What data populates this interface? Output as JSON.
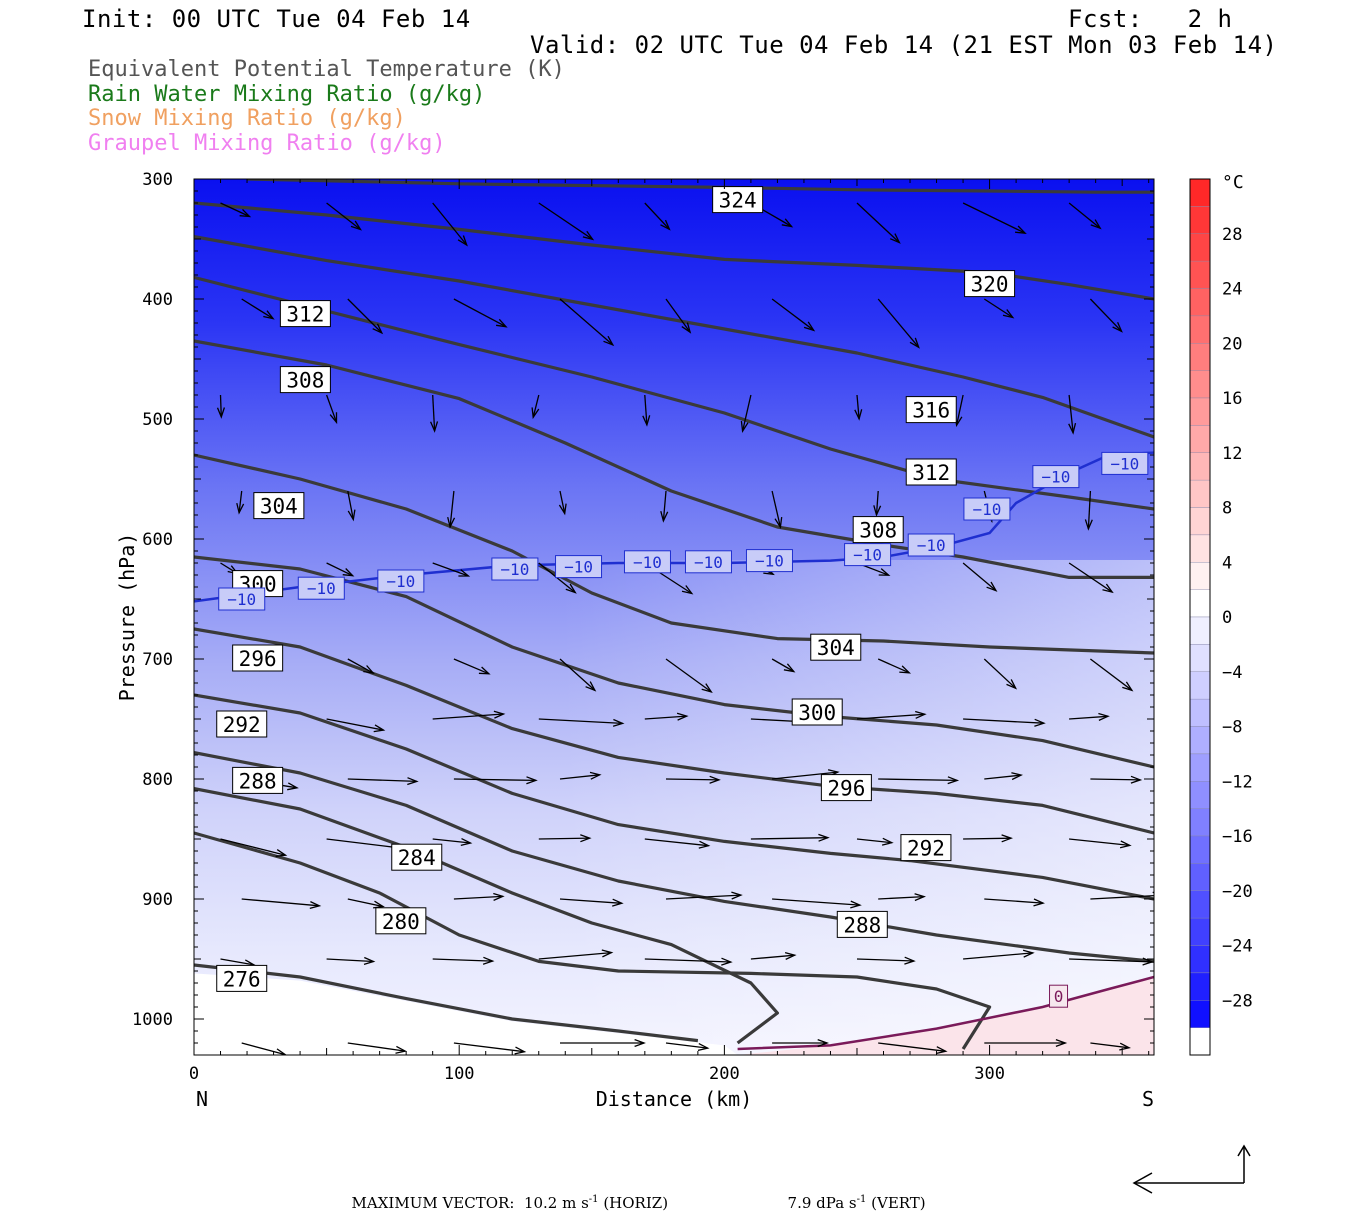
{
  "header": {
    "init": "Init: 00 UTC Tue 04 Feb 14",
    "fcst": "Fcst:   2 h",
    "valid": "Valid: 02 UTC Tue 04 Feb 14 (21 EST Mon 03 Feb 14)"
  },
  "fields": [
    {
      "label": "Equivalent Potential Temperature (K)",
      "color": "#555555"
    },
    {
      "label": "Rain Water Mixing Ratio (g/kg)",
      "color": "#1a7a1a"
    },
    {
      "label": "Snow Mixing Ratio (g/kg)",
      "color": "#f0a060"
    },
    {
      "label": "Graupel Mixing Ratio (g/kg)",
      "color": "#f080f0"
    }
  ],
  "footer": {
    "max_vector_label": "MAXIMUM VECTOR:",
    "horiz": "10.2 m s",
    "horiz_unit": "(HORIZ)",
    "vert": "7.9 dPa s",
    "vert_unit": "(VERT)",
    "exp": "-1"
  },
  "chart_data": {
    "type": "cross-section",
    "xlabel": "Distance (km)",
    "ylabel": "Pressure (hPa)",
    "xlim": [
      0,
      362
    ],
    "ylim": [
      1030,
      300
    ],
    "x_ticks": [
      0,
      100,
      200,
      300
    ],
    "y_ticks": [
      300,
      400,
      500,
      600,
      700,
      800,
      900,
      1000
    ],
    "x_end_labels": {
      "left": "N",
      "right": "S"
    },
    "colorbar": {
      "unit": "°C",
      "tick_labels": [
        "28",
        "24",
        "20",
        "16",
        "12",
        "8",
        "4",
        "0",
        "−4",
        "−8",
        "−12",
        "−16",
        "−20",
        "−24",
        "−28"
      ],
      "tick_values": [
        28,
        24,
        20,
        16,
        12,
        8,
        4,
        0,
        -4,
        -8,
        -12,
        -16,
        -20,
        -24,
        -28
      ],
      "range": [
        -32,
        32
      ],
      "warm_top": "#ff1a1a",
      "cold_bottom": "#0000ff",
      "zero": "#ffffff"
    },
    "theta_e_contours": [
      {
        "label": "324",
        "points": [
          [
            20,
            300
          ],
          [
            100,
            304
          ],
          [
            200,
            307
          ],
          [
            250,
            309
          ],
          [
            300,
            310
          ],
          [
            340,
            311
          ],
          [
            362,
            311
          ]
        ],
        "label_at": [
          205,
          318
        ]
      },
      {
        "label": "320",
        "points": [
          [
            0,
            320
          ],
          [
            50,
            330
          ],
          [
            100,
            342
          ],
          [
            150,
            355
          ],
          [
            200,
            367
          ],
          [
            250,
            372
          ],
          [
            300,
            378
          ],
          [
            330,
            388
          ],
          [
            362,
            400
          ]
        ],
        "label_at": [
          300,
          388
        ]
      },
      {
        "label": "316",
        "points": [
          [
            0,
            348
          ],
          [
            50,
            368
          ],
          [
            100,
            385
          ],
          [
            150,
            405
          ],
          [
            200,
            425
          ],
          [
            250,
            445
          ],
          [
            290,
            465
          ],
          [
            320,
            482
          ],
          [
            362,
            515
          ]
        ],
        "label_at": [
          278,
          493
        ]
      },
      {
        "label": "312",
        "points": [
          [
            0,
            382
          ],
          [
            50,
            410
          ],
          [
            100,
            438
          ],
          [
            150,
            465
          ],
          [
            200,
            495
          ],
          [
            240,
            525
          ],
          [
            280,
            550
          ],
          [
            330,
            565
          ],
          [
            362,
            575
          ]
        ],
        "label_at": [
          42,
          413
        ],
        "label2": "312",
        "label2_at": [
          278,
          545
        ]
      },
      {
        "label": "308",
        "points": [
          [
            0,
            435
          ],
          [
            50,
            455
          ],
          [
            100,
            483
          ],
          [
            140,
            520
          ],
          [
            180,
            560
          ],
          [
            220,
            590
          ],
          [
            260,
            605
          ],
          [
            290,
            615
          ],
          [
            330,
            632
          ],
          [
            362,
            632
          ]
        ],
        "label_at": [
          42,
          468
        ],
        "label2": "308",
        "label2_at": [
          258,
          593
        ]
      },
      {
        "label": "304",
        "points": [
          [
            0,
            530
          ],
          [
            40,
            550
          ],
          [
            80,
            575
          ],
          [
            120,
            610
          ],
          [
            150,
            645
          ],
          [
            180,
            670
          ],
          [
            220,
            683
          ],
          [
            260,
            685
          ],
          [
            300,
            690
          ],
          [
            362,
            695
          ]
        ],
        "label_at": [
          32,
          573
        ],
        "label2": "304",
        "label2_at": [
          242,
          691
        ]
      },
      {
        "label": "300",
        "points": [
          [
            0,
            615
          ],
          [
            40,
            625
          ],
          [
            80,
            648
          ],
          [
            120,
            690
          ],
          [
            160,
            720
          ],
          [
            200,
            738
          ],
          [
            240,
            748
          ],
          [
            280,
            755
          ],
          [
            320,
            768
          ],
          [
            362,
            790
          ]
        ],
        "label_at": [
          24,
          638
        ],
        "label2": "300",
        "label2_at": [
          235,
          745
        ]
      },
      {
        "label": "296",
        "points": [
          [
            0,
            675
          ],
          [
            40,
            690
          ],
          [
            80,
            722
          ],
          [
            120,
            758
          ],
          [
            160,
            782
          ],
          [
            200,
            795
          ],
          [
            240,
            806
          ],
          [
            280,
            812
          ],
          [
            320,
            822
          ],
          [
            362,
            845
          ]
        ],
        "label_at": [
          24,
          700
        ],
        "label2": "296",
        "label2_at": [
          246,
          808
        ]
      },
      {
        "label": "292",
        "points": [
          [
            0,
            730
          ],
          [
            40,
            745
          ],
          [
            80,
            775
          ],
          [
            120,
            812
          ],
          [
            160,
            838
          ],
          [
            200,
            852
          ],
          [
            240,
            862
          ],
          [
            270,
            868
          ],
          [
            320,
            882
          ],
          [
            362,
            900
          ]
        ],
        "label_at": [
          18,
          755
        ],
        "label2": "292",
        "label2_at": [
          276,
          858
        ]
      },
      {
        "label": "288",
        "points": [
          [
            0,
            778
          ],
          [
            40,
            795
          ],
          [
            80,
            822
          ],
          [
            120,
            860
          ],
          [
            160,
            885
          ],
          [
            200,
            902
          ],
          [
            240,
            915
          ],
          [
            280,
            930
          ],
          [
            330,
            945
          ],
          [
            362,
            952
          ]
        ],
        "label_at": [
          24,
          802
        ],
        "label2": "288",
        "label2_at": [
          252,
          922
        ]
      },
      {
        "label": "284",
        "points": [
          [
            0,
            808
          ],
          [
            40,
            825
          ],
          [
            80,
            857
          ],
          [
            120,
            895
          ],
          [
            150,
            920
          ],
          [
            180,
            938
          ],
          [
            210,
            970
          ],
          [
            220,
            995
          ],
          [
            205,
            1020
          ]
        ],
        "label_at": [
          84,
          866
        ]
      },
      {
        "label": "280",
        "points": [
          [
            0,
            845
          ],
          [
            40,
            870
          ],
          [
            70,
            895
          ],
          [
            100,
            930
          ],
          [
            130,
            952
          ],
          [
            160,
            960
          ],
          [
            210,
            962
          ],
          [
            250,
            965
          ],
          [
            280,
            975
          ],
          [
            300,
            990
          ],
          [
            290,
            1025
          ]
        ],
        "label_at": [
          78,
          919
        ]
      },
      {
        "label": "276",
        "points": [
          [
            0,
            955
          ],
          [
            40,
            965
          ],
          [
            80,
            983
          ],
          [
            120,
            1000
          ],
          [
            160,
            1010
          ],
          [
            190,
            1018
          ]
        ],
        "label_at": [
          18,
          967
        ]
      }
    ],
    "isotherm_m10": {
      "value": -10,
      "label": "−10",
      "color": "#1f2fd0",
      "points": [
        [
          0,
          652
        ],
        [
          40,
          640
        ],
        [
          80,
          630
        ],
        [
          120,
          622
        ],
        [
          160,
          620
        ],
        [
          200,
          620
        ],
        [
          240,
          618
        ],
        [
          260,
          615
        ],
        [
          280,
          607
        ],
        [
          300,
          595
        ],
        [
          310,
          570
        ],
        [
          330,
          545
        ],
        [
          345,
          530
        ],
        [
          362,
          528
        ]
      ],
      "label_positions": [
        [
          18,
          650
        ],
        [
          48,
          641
        ],
        [
          78,
          635
        ],
        [
          121,
          625
        ],
        [
          145,
          623
        ],
        [
          171,
          619
        ],
        [
          194,
          619
        ],
        [
          217,
          618
        ],
        [
          254,
          613
        ],
        [
          278,
          605
        ],
        [
          299,
          575
        ],
        [
          325,
          548
        ],
        [
          351,
          537
        ]
      ]
    },
    "isotherm_0": {
      "value": 0,
      "label": "0",
      "color": "#7a1a5a",
      "points": [
        [
          205,
          1025
        ],
        [
          240,
          1022
        ],
        [
          280,
          1008
        ],
        [
          320,
          990
        ],
        [
          345,
          975
        ],
        [
          362,
          965
        ]
      ],
      "label_at": [
        326,
        981
      ]
    },
    "max_vector": {
      "horizontal": "10.2 m s-1",
      "vertical": "7.9 dPa s-1"
    }
  }
}
